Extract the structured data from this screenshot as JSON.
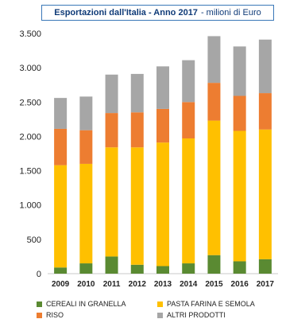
{
  "chart_data": {
    "type": "bar",
    "stacked": true,
    "title": "Esportazioni dall'Italia - Anno 2017",
    "subtitle": "- milioni di Euro",
    "categories": [
      "2009",
      "2010",
      "2011",
      "2012",
      "2013",
      "2014",
      "2015",
      "2016",
      "2017"
    ],
    "ylim": [
      0,
      3500
    ],
    "yticks": [
      0,
      500,
      1000,
      1500,
      2000,
      2500,
      3000,
      3500
    ],
    "ytick_labels": [
      "0",
      "500",
      "1.000",
      "1.500",
      "2.000",
      "2.500",
      "3.000",
      "3.500"
    ],
    "grid": false,
    "legend_position": "bottom",
    "series": [
      {
        "name": "CEREALI IN GRANELLA",
        "color": "#5a8a32",
        "values": [
          90,
          150,
          250,
          130,
          110,
          150,
          270,
          180,
          210
        ]
      },
      {
        "name": "PASTA FARINA E SEMOLA",
        "color": "#ffc000",
        "values": [
          1490,
          1450,
          1590,
          1710,
          1800,
          1820,
          1960,
          1900,
          1890
        ]
      },
      {
        "name": "RISO",
        "color": "#ed7d31",
        "values": [
          530,
          490,
          500,
          510,
          490,
          530,
          550,
          510,
          530
        ]
      },
      {
        "name": "ALTRI PRODOTTI",
        "color": "#a6a6a6",
        "values": [
          450,
          490,
          560,
          560,
          620,
          610,
          680,
          720,
          780
        ]
      }
    ]
  }
}
